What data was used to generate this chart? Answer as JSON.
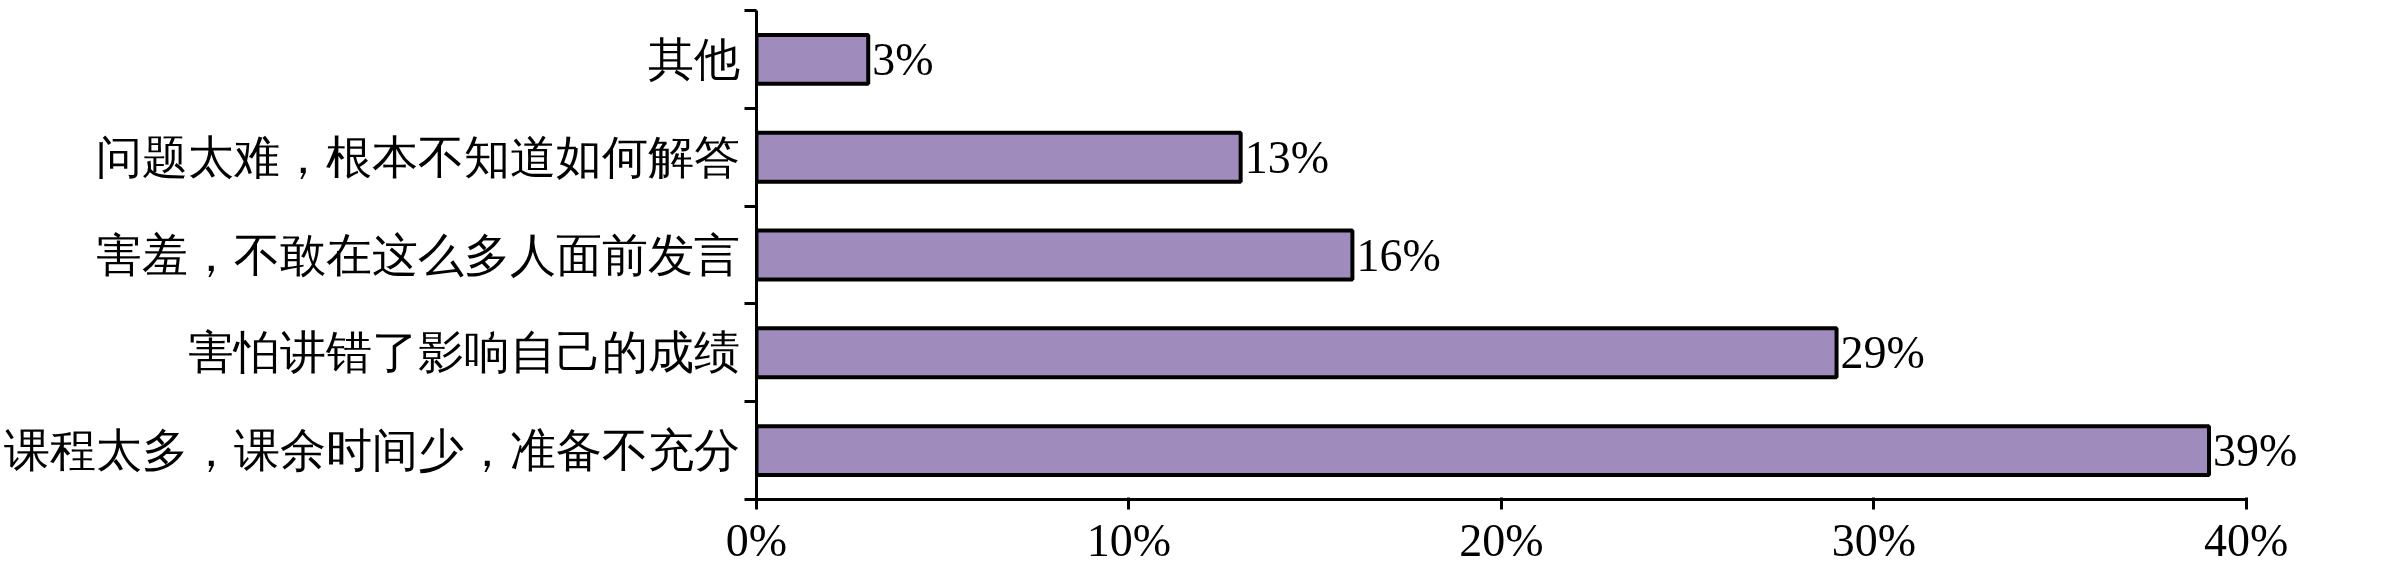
{
  "chart_data": {
    "type": "bar",
    "orientation": "horizontal",
    "categories": [
      "其他",
      "问题太难，根本不知道如何解答",
      "害羞，不敢在这么多人面前发言",
      "害怕讲错了影响自己的成绩",
      "课程太多，课余时间少，准备不充分"
    ],
    "values": [
      3,
      13,
      16,
      29,
      39
    ],
    "color": "#a08cbc",
    "value_labels": [
      "3%",
      "13%",
      "16%",
      "29%",
      "39%"
    ],
    "xlim": [
      0,
      40
    ],
    "xticks": [
      {
        "value": 0,
        "label": "0%"
      },
      {
        "value": 10,
        "label": "10%"
      },
      {
        "value": 20,
        "label": "20%"
      },
      {
        "value": 30,
        "label": "30%"
      },
      {
        "value": 40,
        "label": "40%"
      }
    ],
    "grid": false
  }
}
